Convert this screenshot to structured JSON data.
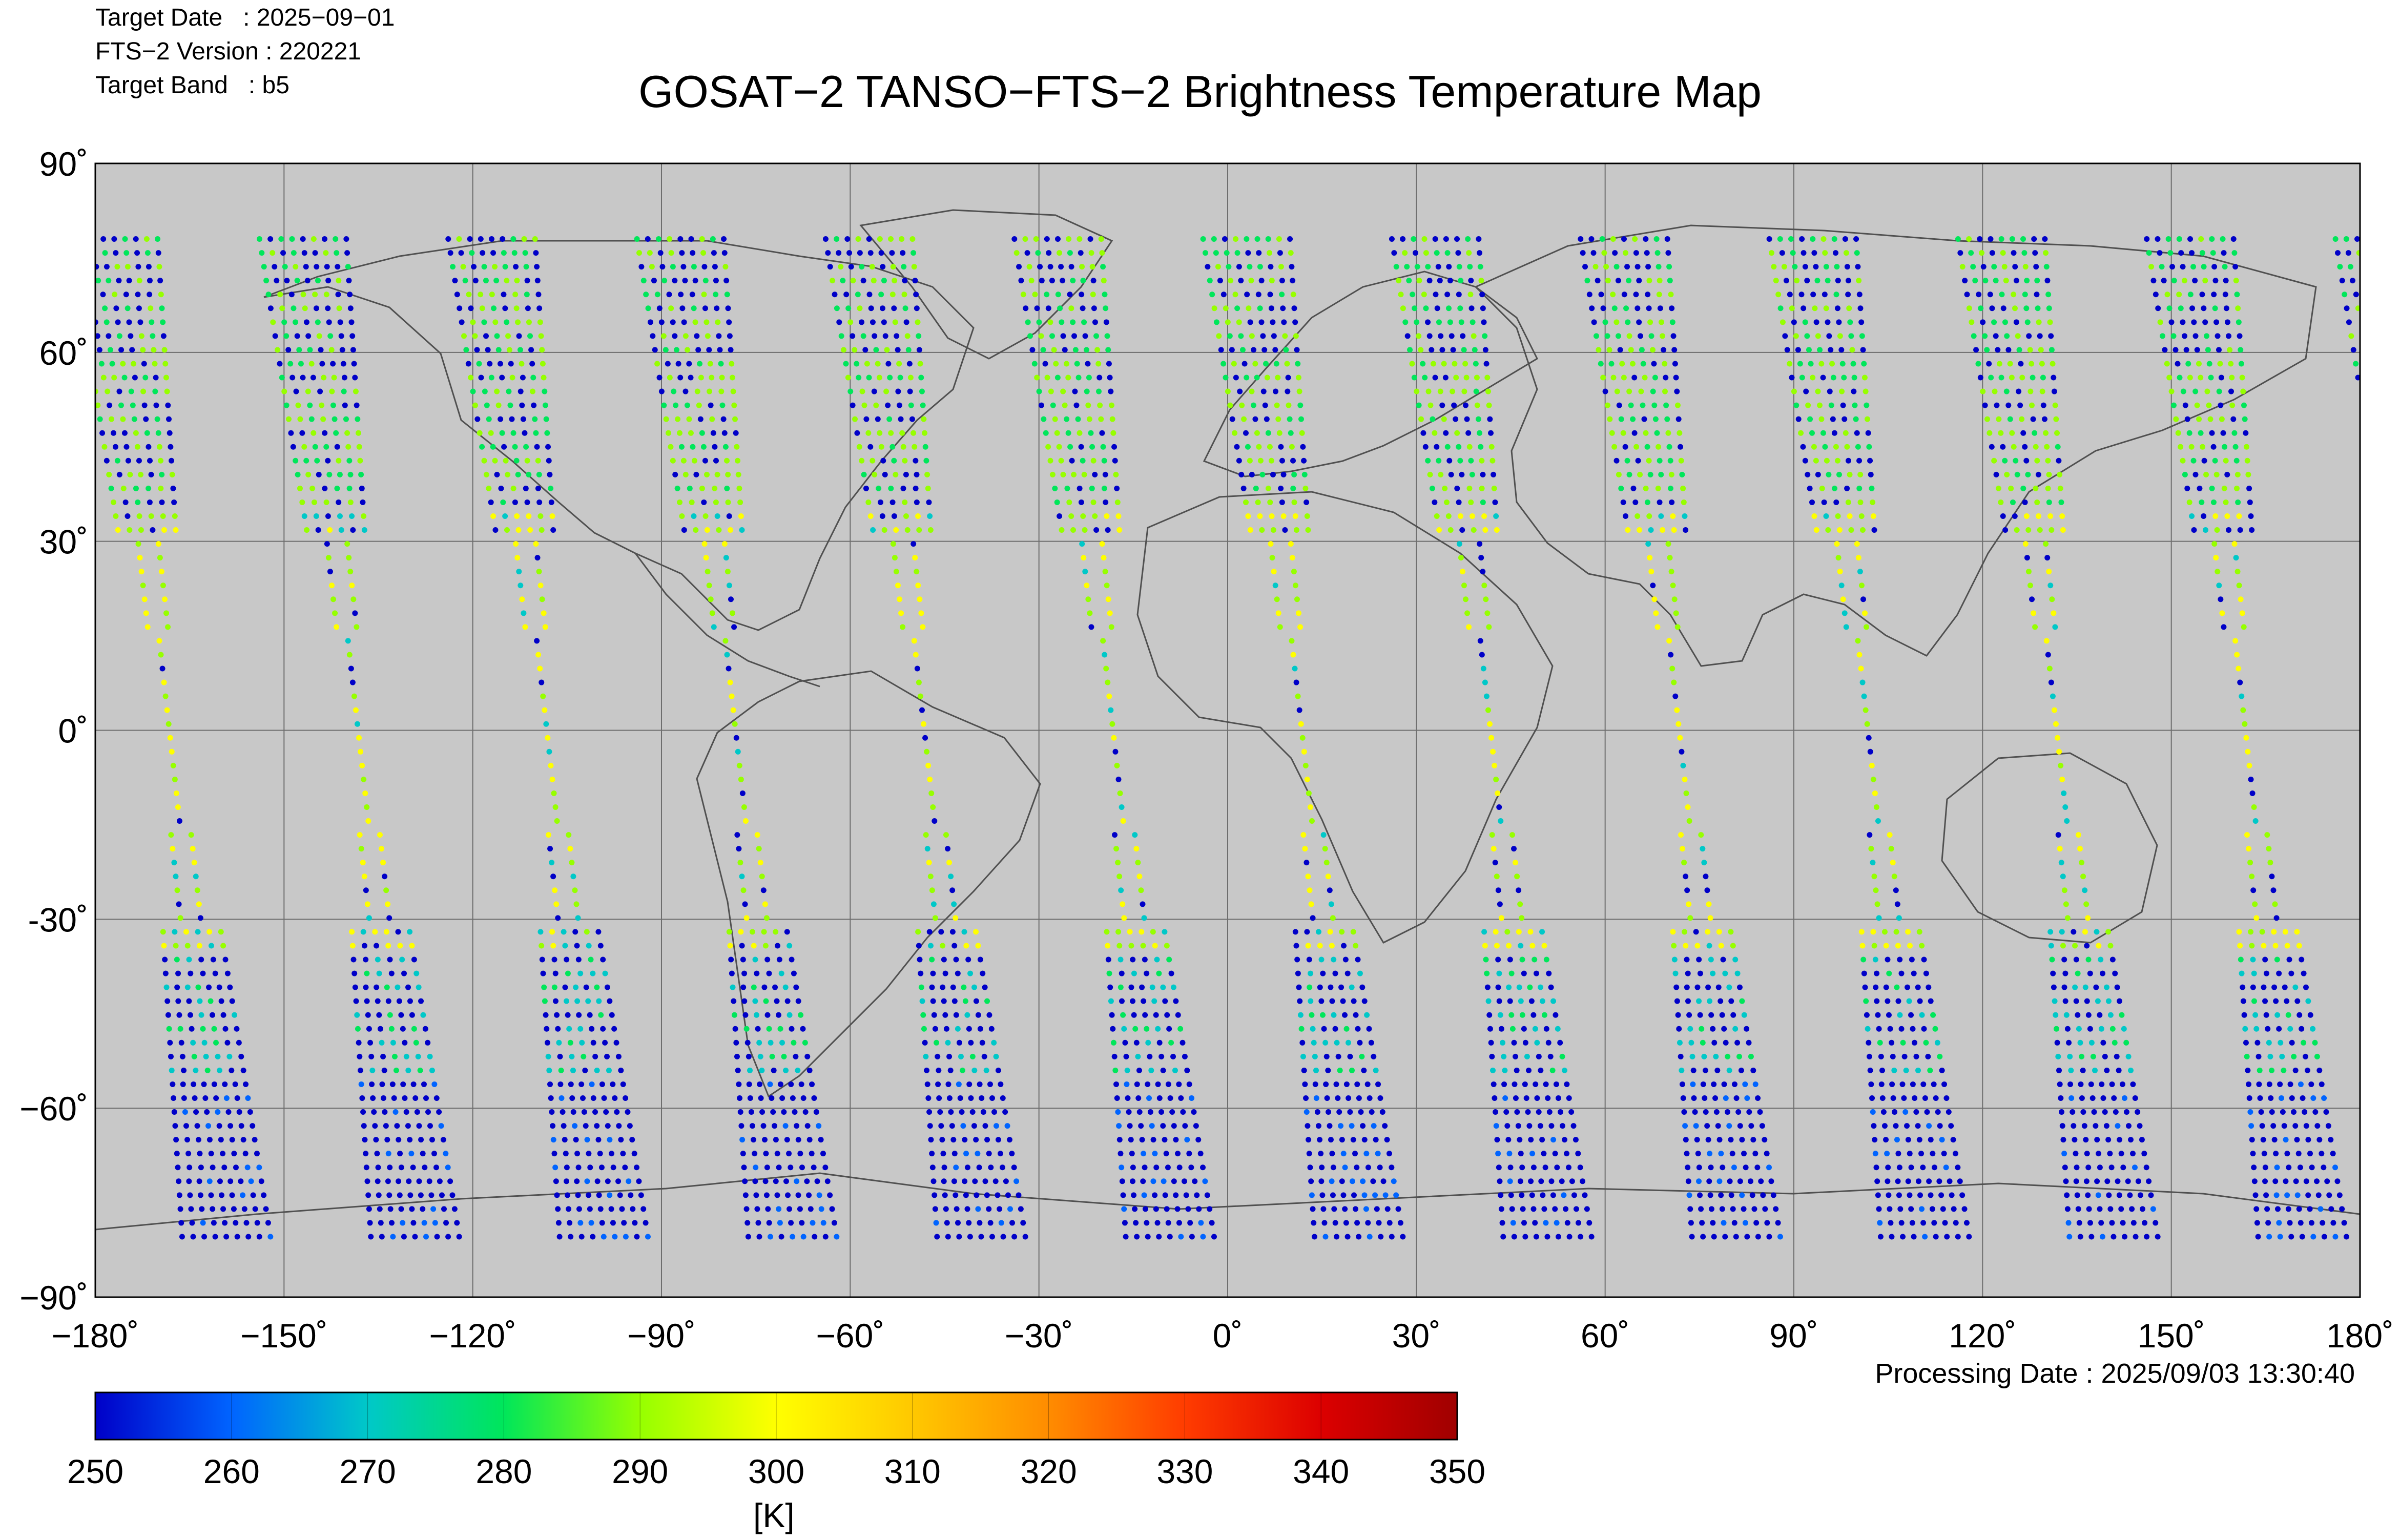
{
  "header": {
    "target_date_label": "Target Date   : 2025−09−01",
    "version_label": "FTS−2 Version : 220221",
    "band_label": "Target Band   : b5"
  },
  "title": "GOSAT−2 TANSO−FTS−2 Brightness Temperature Map",
  "axes": {
    "lon_ticks": [
      "−180˚",
      "−150˚",
      "−120˚",
      "−90˚",
      "−60˚",
      "−30˚",
      "0˚",
      "30˚",
      "60˚",
      "90˚",
      "120˚",
      "150˚",
      "180˚"
    ],
    "lat_ticks": [
      "90˚",
      "60˚",
      "30˚",
      "0˚",
      "-30˚",
      "−60˚",
      "−90˚"
    ],
    "lon_range": [
      -180,
      180
    ],
    "lat_range": [
      -90,
      90
    ],
    "grid": true
  },
  "processing_date": "Processing Date : 2025/09/03 13:30:40",
  "colorbar": {
    "ticks": [
      "250",
      "260",
      "270",
      "280",
      "290",
      "300",
      "310",
      "320",
      "330",
      "340",
      "350"
    ],
    "range": [
      250,
      350
    ],
    "unit": "[K]",
    "colors": [
      "#0000c8",
      "#0064ff",
      "#00c8c8",
      "#00e65a",
      "#96ff00",
      "#ffff00",
      "#ffc800",
      "#ff8c00",
      "#ff3c00",
      "#dc0000",
      "#a00000"
    ]
  },
  "map": {
    "background": "#c8c8c8",
    "coastline_color": "#505050",
    "grid_color": "#6e6e6e"
  }
}
